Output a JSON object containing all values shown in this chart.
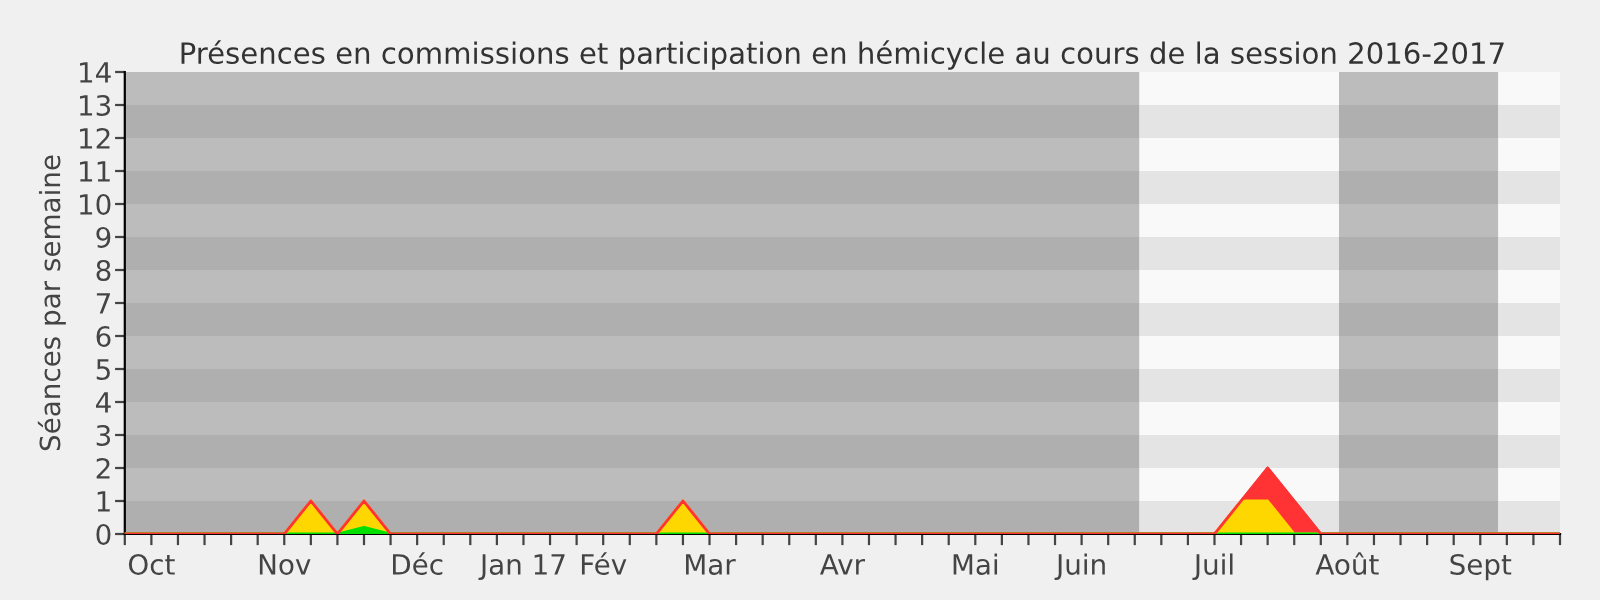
{
  "chart_data": {
    "type": "area",
    "title": "Présences en commissions et participation en hémicycle au cours de la session 2016-2017",
    "ylabel": "Séances par semaine",
    "categories": [
      null,
      "Oct",
      null,
      null,
      null,
      null,
      "Nov",
      null,
      null,
      null,
      null,
      "Déc",
      null,
      null,
      null,
      "Jan 17",
      null,
      null,
      "Fév",
      null,
      null,
      null,
      "Mar",
      null,
      null,
      null,
      null,
      "Avr",
      null,
      null,
      null,
      null,
      "Mai",
      null,
      null,
      null,
      "Juin",
      null,
      null,
      null,
      null,
      "Juil",
      null,
      null,
      null,
      null,
      "Août",
      null,
      null,
      null,
      null,
      "Sept",
      null,
      null,
      null
    ],
    "series": [
      {
        "color": "#ff3333",
        "values": [
          0,
          0,
          0,
          0,
          0,
          0,
          0,
          1,
          0,
          1,
          0,
          0,
          0,
          0,
          0,
          0,
          0,
          0,
          0,
          0,
          0,
          1,
          0,
          0,
          0,
          0,
          0,
          0,
          0,
          0,
          0,
          0,
          0,
          0,
          0,
          0,
          0,
          0,
          0,
          0,
          0,
          0,
          1,
          2,
          1,
          0,
          0,
          0,
          0,
          0,
          0,
          0,
          0,
          0,
          0
        ]
      },
      {
        "color": "#ffd700",
        "values": [
          0,
          0,
          0,
          0,
          0,
          0,
          0,
          1,
          0,
          1,
          0,
          0,
          0,
          0,
          0,
          0,
          0,
          0,
          0,
          0,
          0,
          1,
          0,
          0,
          0,
          0,
          0,
          0,
          0,
          0,
          0,
          0,
          0,
          0,
          0,
          0,
          0,
          0,
          0,
          0,
          0,
          0,
          1,
          1,
          0,
          0,
          0,
          0,
          0,
          0,
          0,
          0,
          0,
          0,
          0
        ]
      },
      {
        "color": "#00e000",
        "values": [
          0,
          0,
          0,
          0,
          0,
          0,
          0,
          0,
          0,
          0.2,
          0,
          0,
          0,
          0,
          0,
          0,
          0,
          0,
          0,
          0,
          0,
          0,
          0,
          0,
          0,
          0,
          0,
          0,
          0,
          0,
          0,
          0,
          0,
          0,
          0,
          0,
          0,
          0,
          0,
          0,
          0,
          0,
          0,
          0,
          0,
          0,
          0,
          0,
          0,
          0,
          0,
          0,
          0,
          0,
          0
        ]
      }
    ],
    "ylim": [
      0,
      14
    ],
    "yticks": [
      0,
      1,
      2,
      3,
      4,
      5,
      6,
      7,
      8,
      9,
      10,
      11,
      12,
      13,
      14
    ],
    "legend": false
  }
}
